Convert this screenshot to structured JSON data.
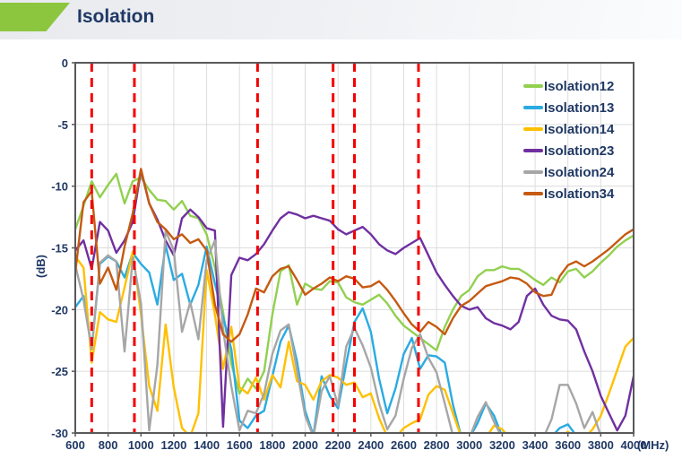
{
  "header": {
    "title": "Isolation",
    "accent_color": "#8cc63e"
  },
  "chart_data": {
    "type": "line",
    "title": "Isolation",
    "xlabel": "(MHz)",
    "ylabel": "(dB)",
    "xlim": [
      600,
      4000
    ],
    "ylim": [
      -30,
      0
    ],
    "grid": true,
    "legend_position": "top-right-inside",
    "x_ticks": [
      600,
      800,
      1000,
      1200,
      1400,
      1600,
      1800,
      2000,
      2200,
      2400,
      2600,
      2800,
      3000,
      3200,
      3400,
      3600,
      3800,
      4000
    ],
    "y_ticks": [
      0,
      -5,
      -10,
      -15,
      -20,
      -25,
      -30
    ],
    "band_marker_freqs_mhz": [
      700,
      960,
      1710,
      2170,
      2300,
      2690
    ],
    "band_marker_color": "#f40000",
    "x_start": 600,
    "x_step": 50,
    "series": [
      {
        "name": "Isolation12",
        "color": "#92d050",
        "values": [
          -13.5,
          -11.6,
          -9.6,
          -10.9,
          -9.9,
          -9.0,
          -11.4,
          -9.6,
          -9.3,
          -10.3,
          -11.1,
          -11.2,
          -11.9,
          -11.2,
          -12.4,
          -12.6,
          -13.9,
          -16.6,
          -20.2,
          -24.4,
          -26.8,
          -25.6,
          -26.4,
          -25.0,
          -20.4,
          -16.9,
          -16.4,
          -19.6,
          -17.9,
          -18.3,
          -18.4,
          -17.7,
          -17.8,
          -19.0,
          -19.4,
          -19.6,
          -19.2,
          -18.8,
          -19.5,
          -20.5,
          -21.3,
          -21.8,
          -22.3,
          -22.8,
          -23.3,
          -21.4,
          -20.0,
          -18.9,
          -18.4,
          -17.3,
          -16.8,
          -16.8,
          -16.5,
          -16.7,
          -16.7,
          -17.1,
          -17.6,
          -18.0,
          -17.4,
          -17.8,
          -16.9,
          -16.7,
          -17.4,
          -16.9,
          -16.2,
          -15.6,
          -14.9,
          -14.4,
          -14.0
        ]
      },
      {
        "name": "Isolation13",
        "color": "#29abe2",
        "values": [
          -19.8,
          -18.9,
          -23.2,
          -16.3,
          -15.7,
          -16.1,
          -17.4,
          -15.4,
          -16.3,
          -17.0,
          -19.6,
          -14.8,
          -17.6,
          -17.1,
          -19.6,
          -18.0,
          -14.9,
          -17.9,
          -20.6,
          -23.2,
          -29.0,
          -29.6,
          -28.6,
          -28.2,
          -25.4,
          -22.6,
          -21.3,
          -24.2,
          -28.2,
          -30.2,
          -25.4,
          -27.0,
          -28.0,
          -24.4,
          -21.0,
          -19.9,
          -21.8,
          -25.6,
          -28.4,
          -26.4,
          -23.6,
          -22.3,
          -24.8,
          -23.7,
          -23.8,
          -24.3,
          -27.7,
          -30.3,
          -30.4,
          -29.2,
          -27.6,
          -28.6,
          -30.3,
          -30.5,
          -30.5,
          -30.5,
          -30.5,
          -30.5,
          -30.3,
          -29.6,
          -29.3,
          -30.2,
          -30.5,
          -30.5,
          -30.5,
          -30.5,
          -30.5,
          -30.5,
          -30.5
        ]
      },
      {
        "name": "Isolation14",
        "color": "#ffc000",
        "values": [
          -15.7,
          -16.6,
          -24.3,
          -20.2,
          -20.8,
          -21.0,
          -18.2,
          -15.3,
          -20.4,
          -26.2,
          -28.2,
          -21.2,
          -26.3,
          -29.6,
          -30.3,
          -28.4,
          -16.8,
          -20.4,
          -24.8,
          -21.4,
          -26.3,
          -26.8,
          -25.5,
          -27.3,
          -25.3,
          -26.3,
          -22.6,
          -25.8,
          -26.1,
          -27.3,
          -25.8,
          -25.3,
          -25.5,
          -26.1,
          -25.9,
          -27.1,
          -26.8,
          -28.8,
          -30.3,
          -30.4,
          -29.6,
          -29.2,
          -28.9,
          -26.9,
          -26.2,
          -26.5,
          -28.4,
          -30.3,
          -30.5,
          -30.5,
          -30.4,
          -29.4,
          -29.7,
          -30.5,
          -30.5,
          -30.5,
          -30.5,
          -30.5,
          -30.5,
          -30.3,
          -29.9,
          -30.4,
          -30.4,
          -29.7,
          -28.6,
          -26.8,
          -24.9,
          -23.0,
          -22.3
        ]
      },
      {
        "name": "Isolation23",
        "color": "#7030a0",
        "values": [
          -15.2,
          -14.4,
          -16.7,
          -12.9,
          -13.6,
          -15.4,
          -14.4,
          -12.9,
          -8.7,
          -11.4,
          -12.7,
          -14.4,
          -15.6,
          -12.6,
          -11.9,
          -12.5,
          -13.4,
          -13.6,
          -29.5,
          -17.2,
          -15.8,
          -16.0,
          -15.5,
          -14.7,
          -13.6,
          -12.6,
          -12.1,
          -12.3,
          -12.6,
          -12.4,
          -12.6,
          -12.8,
          -13.5,
          -13.9,
          -13.6,
          -13.3,
          -13.9,
          -14.7,
          -15.2,
          -15.5,
          -15.0,
          -14.6,
          -14.2,
          -15.6,
          -17.0,
          -18.0,
          -18.9,
          -19.7,
          -20.0,
          -19.8,
          -20.7,
          -21.1,
          -21.3,
          -21.6,
          -21.0,
          -18.9,
          -18.3,
          -19.6,
          -20.5,
          -20.8,
          -20.9,
          -21.6,
          -23.4,
          -25.0,
          -27.0,
          -28.4,
          -29.8,
          -28.6,
          -25.4
        ]
      },
      {
        "name": "Isolation24",
        "color": "#a6a6a6",
        "values": [
          -16.4,
          -19.2,
          -23.2,
          -16.2,
          -15.6,
          -16.1,
          -23.4,
          -15.8,
          -19.5,
          -29.8,
          -24.5,
          -13.6,
          -15.2,
          -21.8,
          -19.4,
          -22.4,
          -16.0,
          -14.4,
          -21.6,
          -26.2,
          -29.8,
          -28.2,
          -28.4,
          -26.8,
          -23.6,
          -21.7,
          -21.2,
          -24.9,
          -28.6,
          -30.3,
          -26.6,
          -25.4,
          -27.8,
          -23.0,
          -21.5,
          -22.9,
          -24.7,
          -27.6,
          -29.7,
          -28.6,
          -25.6,
          -23.1,
          -22.0,
          -23.9,
          -25.1,
          -27.6,
          -30.2,
          -30.5,
          -30.4,
          -28.7,
          -27.5,
          -29.1,
          -30.4,
          -30.5,
          -30.5,
          -30.5,
          -30.5,
          -30.4,
          -28.9,
          -26.1,
          -26.1,
          -27.6,
          -29.6,
          -28.3,
          -30.2,
          -30.5,
          -30.5,
          -30.5,
          -30.5
        ]
      },
      {
        "name": "Isolation34",
        "color": "#c55a11",
        "values": [
          -17.0,
          -11.3,
          -10.4,
          -17.9,
          -16.6,
          -18.4,
          -14.9,
          -12.2,
          -8.6,
          -11.4,
          -12.9,
          -13.5,
          -14.3,
          -13.9,
          -14.6,
          -14.3,
          -15.2,
          -19.6,
          -22.0,
          -22.6,
          -22.0,
          -20.4,
          -18.3,
          -18.6,
          -17.3,
          -16.7,
          -16.5,
          -17.6,
          -18.8,
          -18.3,
          -17.9,
          -17.4,
          -17.7,
          -17.3,
          -17.5,
          -18.2,
          -18.1,
          -17.7,
          -18.4,
          -19.3,
          -20.3,
          -21.2,
          -21.8,
          -21.0,
          -21.4,
          -22.0,
          -20.7,
          -19.7,
          -19.3,
          -18.7,
          -18.1,
          -17.9,
          -17.7,
          -17.4,
          -17.5,
          -17.9,
          -18.6,
          -18.9,
          -18.8,
          -17.3,
          -16.4,
          -16.1,
          -16.5,
          -16.1,
          -15.6,
          -15.1,
          -14.5,
          -13.9,
          -13.5
        ]
      }
    ]
  }
}
